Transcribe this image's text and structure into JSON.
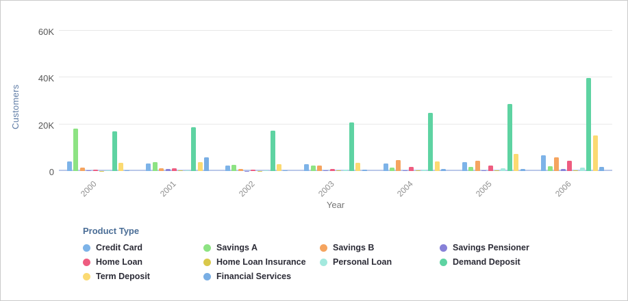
{
  "chart_data": {
    "type": "bar",
    "title": "",
    "xlabel": "Year",
    "ylabel": "Customers",
    "legend_title": "Product Type",
    "legend_position": "bottom",
    "grid": true,
    "ylim": [
      0,
      60000
    ],
    "yticks": [
      {
        "label": "0",
        "value": 0
      },
      {
        "label": "20K",
        "value": 20000
      },
      {
        "label": "40K",
        "value": 40000
      },
      {
        "label": "60K",
        "value": 60000
      }
    ],
    "categories": [
      "2000",
      "2001",
      "2002",
      "2003",
      "2004",
      "2005",
      "2006"
    ],
    "series": [
      {
        "name": "Credit Card",
        "color": "#7db3e8",
        "values": [
          4000,
          3300,
          2200,
          2800,
          3200,
          3700,
          6800
        ]
      },
      {
        "name": "Savings A",
        "color": "#8de383",
        "values": [
          18000,
          3800,
          2700,
          2300,
          1500,
          1800,
          2000
        ]
      },
      {
        "name": "Savings B",
        "color": "#f5a45f",
        "values": [
          1500,
          1300,
          800,
          2300,
          4800,
          4300,
          5900
        ]
      },
      {
        "name": "Savings Pensioner",
        "color": "#8781d8",
        "values": [
          200,
          900,
          150,
          200,
          250,
          300,
          800
        ]
      },
      {
        "name": "Home Loan",
        "color": "#ee5c80",
        "values": [
          500,
          1200,
          500,
          1000,
          1800,
          2300,
          4400
        ]
      },
      {
        "name": "Home Loan Insurance",
        "color": "#d9c84a",
        "values": [
          100,
          200,
          100,
          200,
          300,
          200,
          250
        ]
      },
      {
        "name": "Personal Loan",
        "color": "#a3e9de",
        "values": [
          200,
          300,
          200,
          500,
          700,
          1200,
          1600
        ]
      },
      {
        "name": "Demand Deposit",
        "color": "#5ed3a2",
        "values": [
          17000,
          18800,
          17200,
          20800,
          24700,
          28600,
          39700
        ]
      },
      {
        "name": "Term Deposit",
        "color": "#fbda72",
        "values": [
          3400,
          3900,
          3000,
          3600,
          4000,
          7200,
          15300
        ]
      },
      {
        "name": "Financial Services",
        "color": "#79aee4",
        "values": [
          300,
          5800,
          400,
          700,
          800,
          1000,
          1900
        ]
      }
    ],
    "colors": {
      "gridline": "#e8e8e8",
      "axis_baseline": "#b9c7e8",
      "y_tick_text": "#555555",
      "x_tick_text": "#8e8e8e",
      "axis_title_x": "#757575",
      "axis_title_y": "#5f7ca6",
      "legend_title_text": "#4a6d96",
      "legend_item_text": "#2b2b36"
    }
  }
}
